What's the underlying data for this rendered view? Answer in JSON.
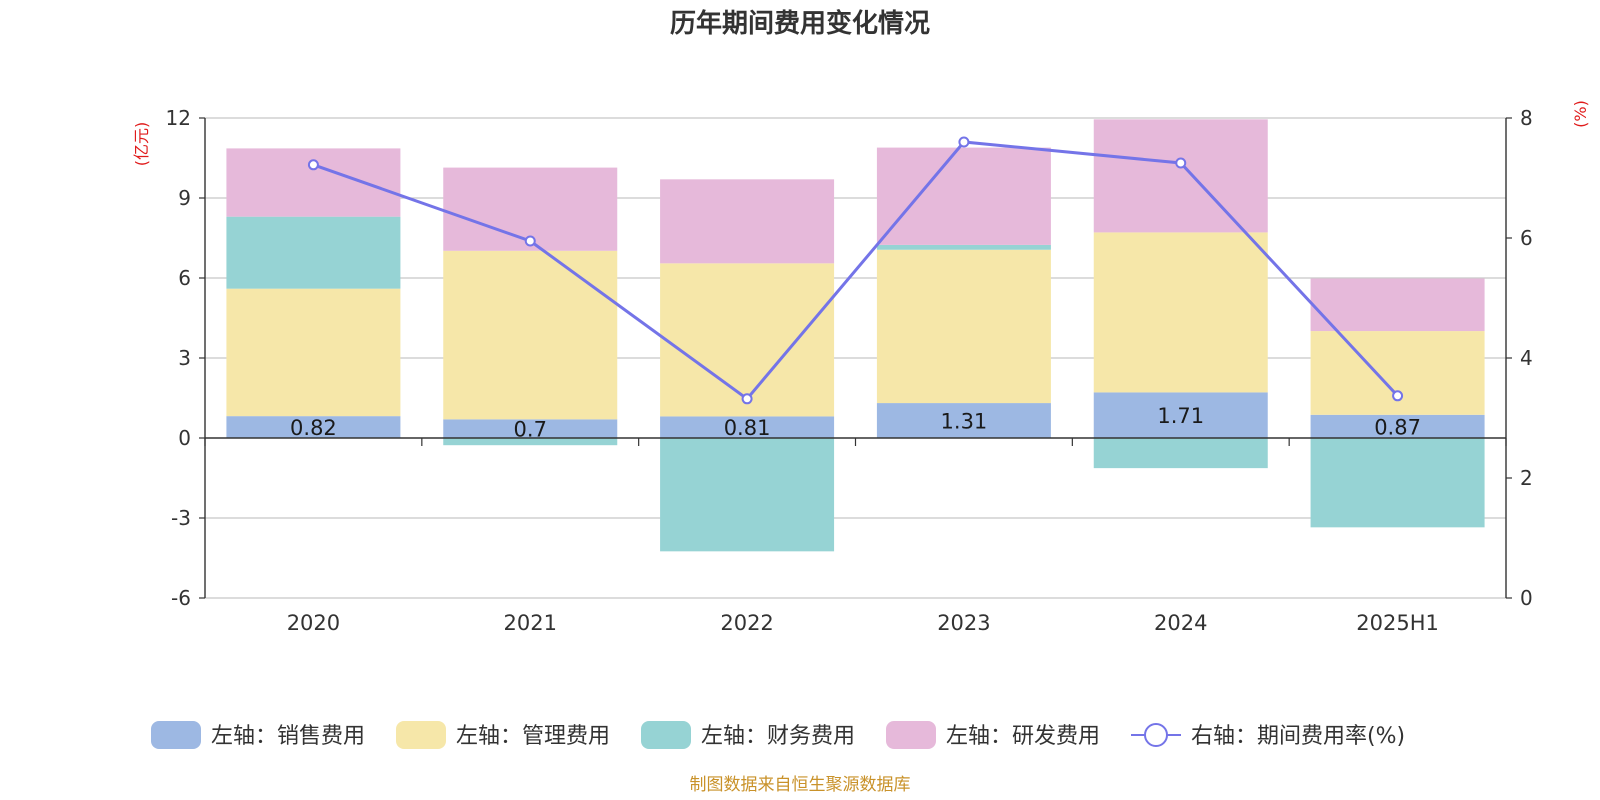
{
  "title": "历年期间费用变化情况",
  "source": "制图数据来自恒生聚源数据库",
  "colors": {
    "sales": "#9db8e3",
    "admin": "#f6e7a9",
    "finance": "#96d3d4",
    "rd": "#e6b9da",
    "rate": "#7474e8",
    "axis": "#333333",
    "grid": "#c8c8c8",
    "unit": "#e01b1b"
  },
  "chart_data": {
    "type": "bar",
    "stacked": true,
    "categories": [
      "2020",
      "2021",
      "2022",
      "2023",
      "2024",
      "2025H1"
    ],
    "left_axis": {
      "unit": "(亿元)",
      "ylim": [
        -6,
        12
      ],
      "ticks": [
        -6,
        -3,
        0,
        3,
        6,
        9,
        12
      ]
    },
    "right_axis": {
      "unit": "(%)",
      "ylim": [
        0,
        8
      ],
      "ticks": [
        0,
        2,
        4,
        6,
        8
      ]
    },
    "grid": true,
    "legend_position": "bottom",
    "series": [
      {
        "key": "sales",
        "name": "左轴：销售费用",
        "axis": "left",
        "values": [
          0.82,
          0.7,
          0.81,
          1.31,
          1.71,
          0.87
        ],
        "labels": [
          "0.82",
          "0.7",
          "0.81",
          "1.31",
          "1.71",
          "0.87"
        ]
      },
      {
        "key": "admin",
        "name": "左轴：管理费用",
        "axis": "left",
        "values": [
          4.78,
          6.32,
          5.74,
          5.75,
          6.0,
          3.14
        ]
      },
      {
        "key": "finance",
        "name": "左轴：财务费用",
        "axis": "left",
        "values": [
          2.7,
          -0.27,
          -4.25,
          0.18,
          -1.13,
          -3.35
        ]
      },
      {
        "key": "rd",
        "name": "左轴：研发费用",
        "axis": "left",
        "values": [
          2.56,
          3.12,
          3.15,
          3.65,
          4.24,
          1.97
        ]
      },
      {
        "key": "rate",
        "name": "右轴：期间费用率(%)",
        "axis": "right",
        "type": "line",
        "values": [
          7.22,
          5.95,
          3.32,
          7.6,
          7.25,
          3.37
        ]
      }
    ]
  }
}
